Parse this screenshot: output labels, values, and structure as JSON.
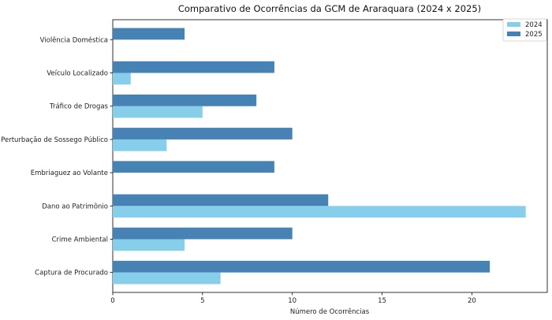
{
  "chart_data": {
    "type": "bar",
    "orientation": "horizontal",
    "title": "Comparativo de Ocorrências da GCM de Araraquara (2024 x 2025)",
    "xlabel": "Número de Ocorrências",
    "ylabel": "",
    "xlim": [
      0,
      24.2
    ],
    "xticks": [
      0,
      5,
      10,
      15,
      20
    ],
    "categories": [
      "Captura de Procurado",
      "Crime Ambiental",
      "Dano ao Patrimônio",
      "Embriaguez ao Volante",
      "Perturbação de Sossego Público",
      "Tráfico de Drogas",
      "Veículo Localizado",
      "Violência Doméstica"
    ],
    "series": [
      {
        "name": "2024",
        "color": "#87ceeb",
        "values": [
          6,
          4,
          23,
          0,
          3,
          5,
          1,
          0
        ]
      },
      {
        "name": "2025",
        "color": "#4682b4",
        "values": [
          21,
          10,
          12,
          9,
          10,
          8,
          9,
          4
        ]
      }
    ],
    "legend": {
      "position": "top-right"
    },
    "grid": false
  }
}
